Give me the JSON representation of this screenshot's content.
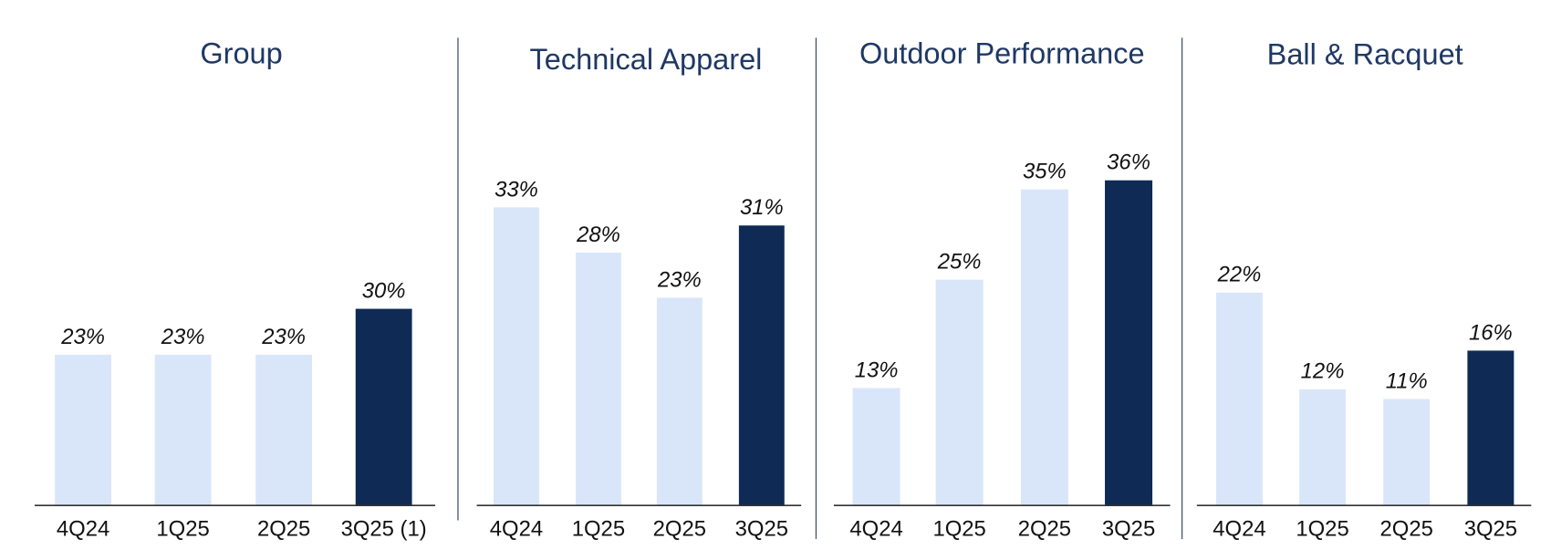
{
  "chart_data": [
    {
      "type": "bar",
      "title": "Group",
      "categories": [
        "4Q24",
        "1Q25",
        "2Q25",
        "3Q25 (1)"
      ],
      "values": [
        23,
        23,
        23,
        30
      ],
      "value_labels": [
        "23%",
        "23%",
        "23%",
        "30%"
      ],
      "colors": [
        "#d9e6fa",
        "#d9e6fa",
        "#d9e6fa",
        "#0e2a55"
      ],
      "ylim": [
        0,
        62
      ]
    },
    {
      "type": "bar",
      "title": "Technical Apparel",
      "categories": [
        "4Q24",
        "1Q25",
        "2Q25",
        "3Q25"
      ],
      "values": [
        33,
        28,
        23,
        31
      ],
      "value_labels": [
        "33%",
        "28%",
        "23%",
        "31%"
      ],
      "colors": [
        "#d9e6fa",
        "#d9e6fa",
        "#d9e6fa",
        "#0e2a55"
      ],
      "ylim": [
        0,
        45
      ]
    },
    {
      "type": "bar",
      "title": "Outdoor Performance",
      "categories": [
        "4Q24",
        "1Q25",
        "2Q25",
        "3Q25"
      ],
      "values": [
        13,
        25,
        35,
        36
      ],
      "value_labels": [
        "13%",
        "25%",
        "35%",
        "36%"
      ],
      "colors": [
        "#d9e6fa",
        "#d9e6fa",
        "#d9e6fa",
        "#0e2a55"
      ],
      "ylim": [
        0,
        45
      ]
    },
    {
      "type": "bar",
      "title": "Ball & Racquet",
      "categories": [
        "4Q24",
        "1Q25",
        "2Q25",
        "3Q25"
      ],
      "values": [
        22,
        12,
        11,
        16
      ],
      "value_labels": [
        "22%",
        "12%",
        "11%",
        "16%"
      ],
      "colors": [
        "#d9e6fa",
        "#d9e6fa",
        "#d9e6fa",
        "#0e2a55"
      ],
      "ylim": [
        0,
        42
      ]
    }
  ]
}
